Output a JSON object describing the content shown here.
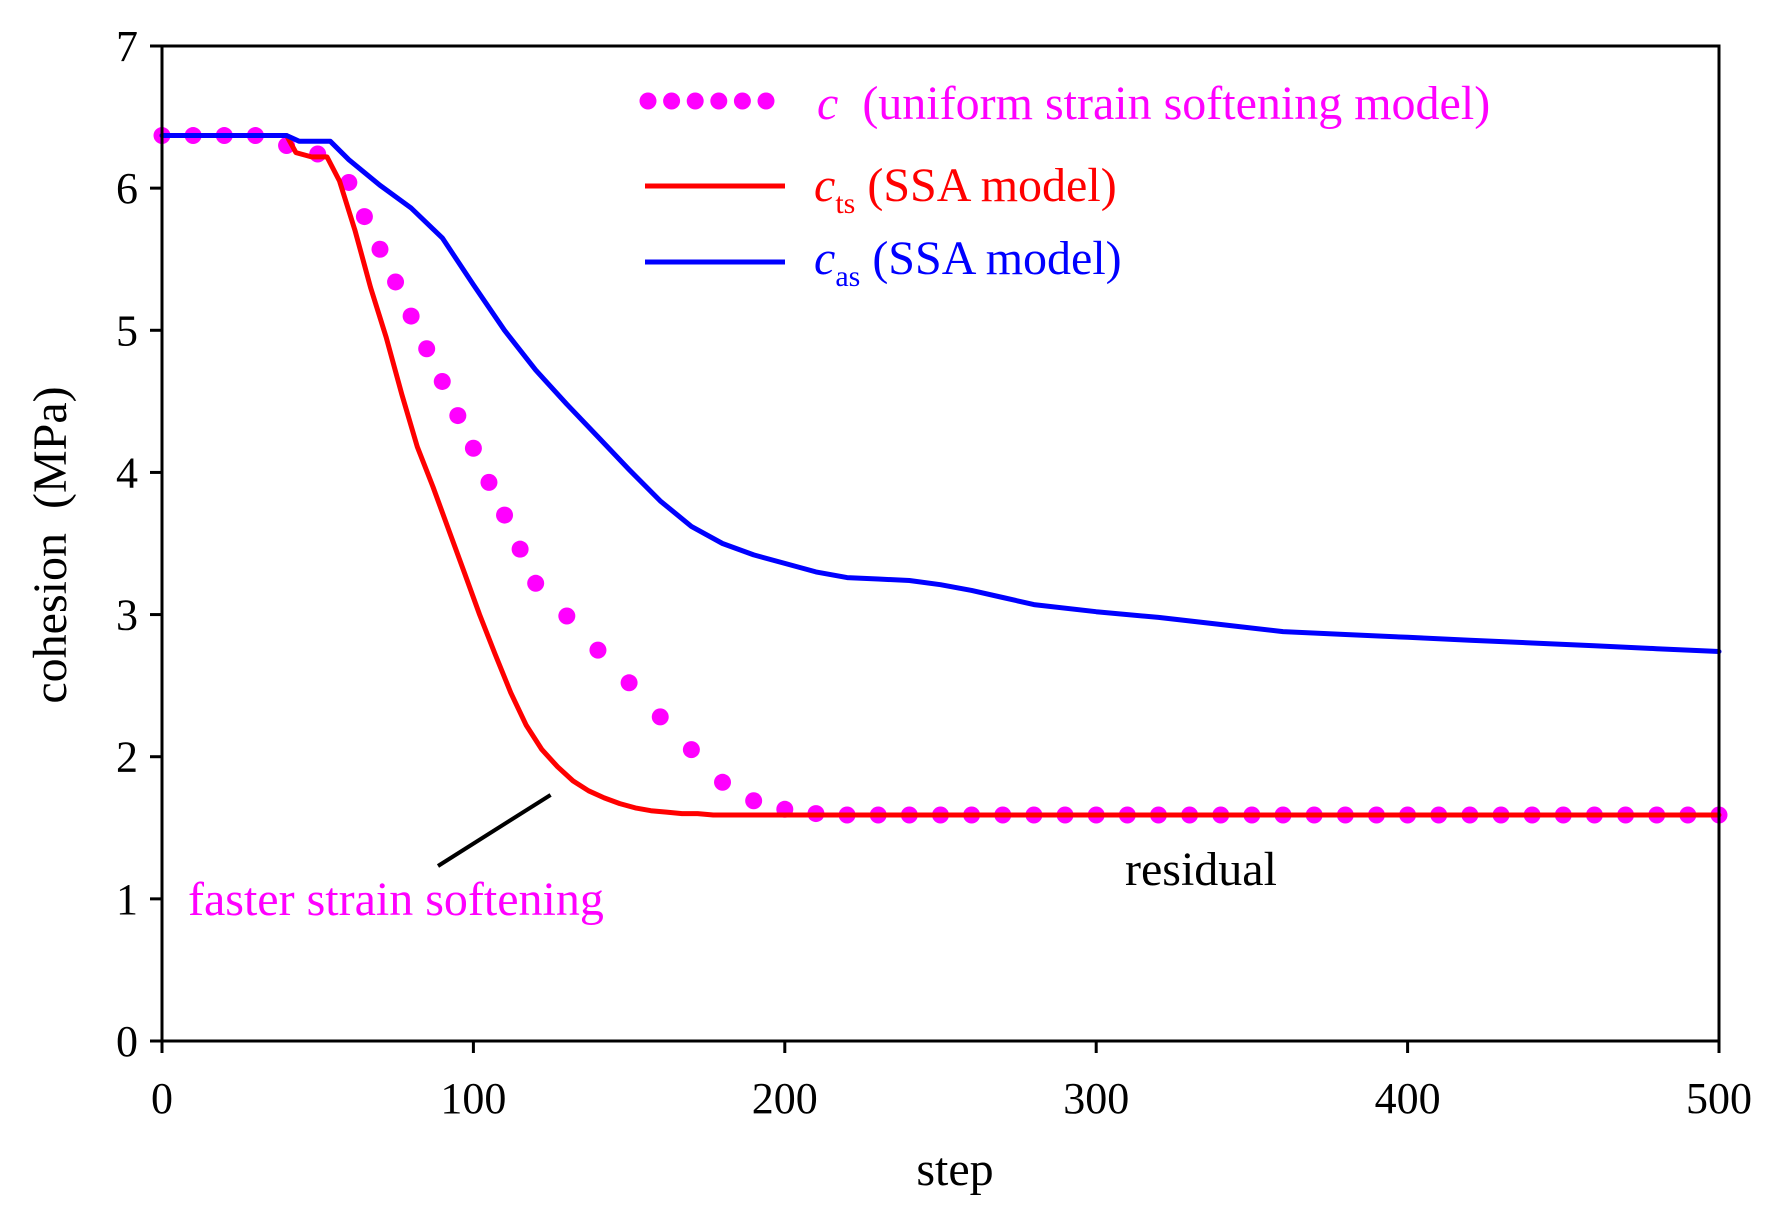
{
  "chart_data": {
    "type": "line",
    "title": "",
    "xlabel": "step",
    "ylabel": "cohesion  (MPa)",
    "xlim": [
      0,
      500
    ],
    "ylim": [
      0,
      7
    ],
    "xticks": [
      0,
      100,
      200,
      300,
      400,
      500
    ],
    "yticks": [
      0,
      1,
      2,
      3,
      4,
      5,
      6,
      7
    ],
    "grid": false,
    "legend_position": "top-right",
    "series": [
      {
        "key": "c-uniform",
        "name": "c",
        "subscript": "",
        "legend_desc": "  (uniform strain softening model)",
        "color": "#ff00ff",
        "style": "dotted",
        "x": [
          0,
          10,
          20,
          30,
          40,
          50,
          60,
          65,
          70,
          75,
          80,
          85,
          90,
          95,
          100,
          105,
          110,
          115,
          120,
          130,
          140,
          150,
          160,
          170,
          180,
          190,
          200,
          210,
          220,
          230,
          240,
          250,
          260,
          270,
          280,
          290,
          300,
          310,
          320,
          330,
          340,
          350,
          360,
          370,
          380,
          390,
          400,
          410,
          420,
          430,
          440,
          450,
          460,
          470,
          480,
          490,
          500
        ],
        "y": [
          6.37,
          6.37,
          6.37,
          6.37,
          6.3,
          6.24,
          6.04,
          5.8,
          5.57,
          5.34,
          5.1,
          4.87,
          4.64,
          4.4,
          4.17,
          3.93,
          3.7,
          3.46,
          3.22,
          2.99,
          2.75,
          2.52,
          2.28,
          2.05,
          1.82,
          1.69,
          1.63,
          1.6,
          1.59,
          1.59,
          1.59,
          1.59,
          1.59,
          1.59,
          1.59,
          1.59,
          1.59,
          1.59,
          1.59,
          1.59,
          1.59,
          1.59,
          1.59,
          1.59,
          1.59,
          1.59,
          1.59,
          1.59,
          1.59,
          1.59,
          1.59,
          1.59,
          1.59,
          1.59,
          1.59,
          1.59,
          1.59
        ]
      },
      {
        "key": "c-ts",
        "name": "c",
        "subscript": "ts",
        "legend_desc": " (SSA model)",
        "color": "#ff0000",
        "style": "solid",
        "x": [
          0,
          40,
          43,
          48,
          53,
          57,
          62,
          67,
          72,
          77,
          82,
          87,
          92,
          97,
          102,
          107,
          112,
          117,
          122,
          127,
          132,
          137,
          142,
          147,
          152,
          157,
          162,
          167,
          172,
          177,
          182,
          200,
          250,
          300,
          350,
          400,
          450,
          500
        ],
        "y": [
          6.37,
          6.37,
          6.25,
          6.22,
          6.22,
          6.05,
          5.7,
          5.3,
          4.95,
          4.55,
          4.18,
          3.9,
          3.6,
          3.3,
          3.0,
          2.72,
          2.45,
          2.22,
          2.05,
          1.93,
          1.83,
          1.76,
          1.71,
          1.67,
          1.64,
          1.62,
          1.61,
          1.6,
          1.6,
          1.59,
          1.59,
          1.59,
          1.59,
          1.59,
          1.59,
          1.59,
          1.59,
          1.59
        ]
      },
      {
        "key": "c-as",
        "name": "c",
        "subscript": "as",
        "legend_desc": " (SSA model)",
        "color": "#0000ff",
        "style": "solid",
        "x": [
          0,
          40,
          44,
          54,
          60,
          70,
          80,
          90,
          100,
          110,
          120,
          130,
          140,
          150,
          160,
          170,
          180,
          190,
          200,
          210,
          220,
          230,
          240,
          250,
          260,
          270,
          280,
          300,
          320,
          340,
          360,
          380,
          400,
          420,
          440,
          460,
          480,
          500
        ],
        "y": [
          6.37,
          6.37,
          6.33,
          6.33,
          6.2,
          6.02,
          5.86,
          5.65,
          5.32,
          5.0,
          4.72,
          4.48,
          4.25,
          4.02,
          3.8,
          3.62,
          3.5,
          3.42,
          3.36,
          3.3,
          3.26,
          3.25,
          3.24,
          3.21,
          3.17,
          3.12,
          3.07,
          3.02,
          2.98,
          2.93,
          2.88,
          2.86,
          2.84,
          2.82,
          2.8,
          2.78,
          2.76,
          2.74
        ]
      }
    ],
    "annotations": [
      {
        "key": "faster",
        "text": "faster strain softening",
        "color": "#ff00ff",
        "points_to": {
          "x": 128,
          "y": 1.83
        }
      },
      {
        "key": "residual",
        "text": "residual",
        "color": "#000000"
      }
    ]
  }
}
